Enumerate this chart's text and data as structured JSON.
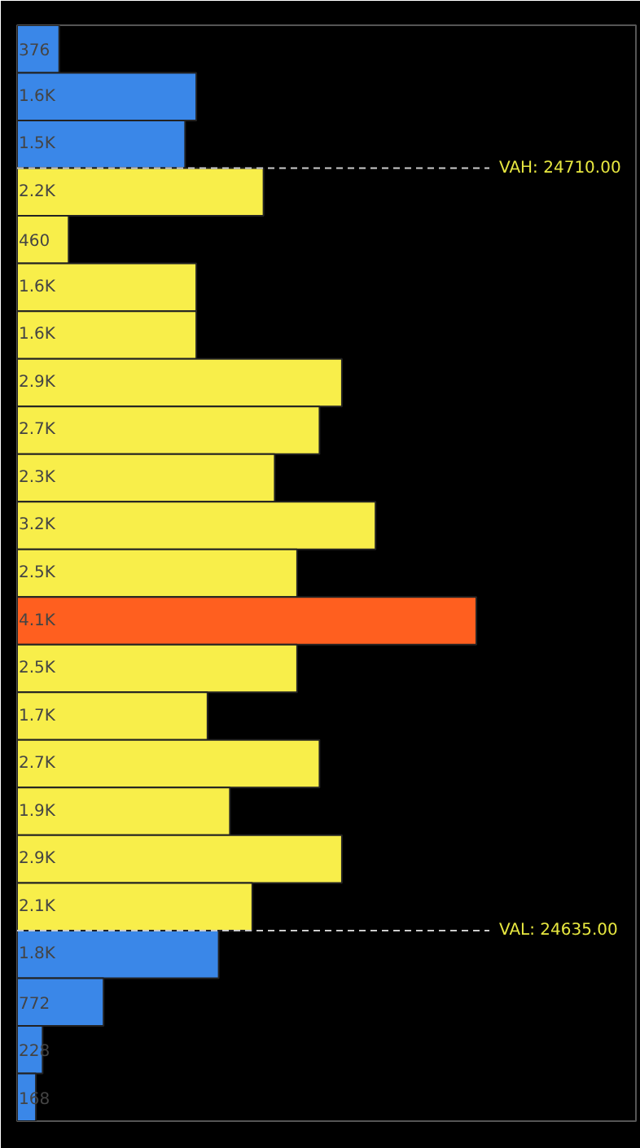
{
  "chart_data": {
    "type": "bar",
    "orientation": "horizontal",
    "categories": [
      null,
      null,
      null,
      null,
      null,
      null,
      null,
      null,
      null,
      null,
      null,
      null,
      null,
      null,
      null,
      null,
      null,
      null,
      null,
      null,
      null,
      null,
      null
    ],
    "values": [
      376,
      1600,
      1500,
      2200,
      460,
      1600,
      1600,
      2900,
      2700,
      2300,
      3200,
      2500,
      4100,
      2500,
      1700,
      2700,
      1900,
      2900,
      2100,
      1800,
      772,
      228,
      168
    ],
    "value_labels": [
      "376",
      "1.6K",
      "1.5K",
      "2.2K",
      "460",
      "1.6K",
      "1.6K",
      "2.9K",
      "2.7K",
      "2.3K",
      "3.2K",
      "2.5K",
      "4.1K",
      "2.5K",
      "1.7K",
      "2.7K",
      "1.9K",
      "2.9K",
      "2.1K",
      "1.8K",
      "772",
      "228",
      "168"
    ],
    "colors": [
      "#3a87e8",
      "#3a87e8",
      "#3a87e8",
      "#f8ee4a",
      "#f8ee4a",
      "#f8ee4a",
      "#f8ee4a",
      "#f8ee4a",
      "#f8ee4a",
      "#f8ee4a",
      "#f8ee4a",
      "#f8ee4a",
      "#ff5f1f",
      "#f8ee4a",
      "#f8ee4a",
      "#f8ee4a",
      "#f8ee4a",
      "#f8ee4a",
      "#f8ee4a",
      "#3a87e8",
      "#3a87e8",
      "#3a87e8",
      "#3a87e8"
    ],
    "tick_labels": false,
    "annotations": [
      "VAH: 24710.00",
      "VAL: 24635.00"
    ]
  }
}
